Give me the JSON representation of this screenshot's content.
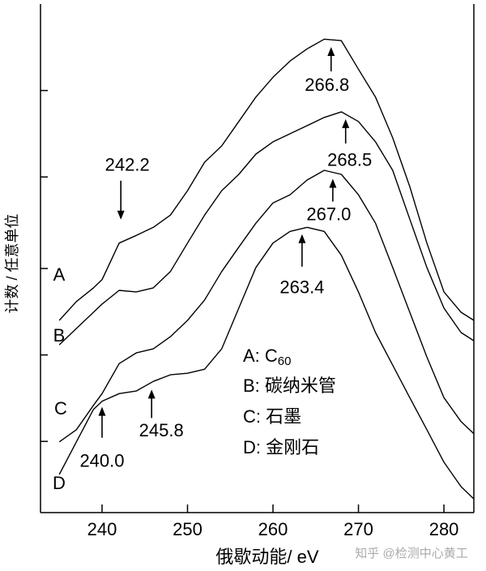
{
  "chart_data": {
    "type": "line",
    "x_label": "俄歇动能/ eV",
    "y_label": "计数 / 任意单位",
    "watermark": "知乎 @检测中心黄工",
    "xlim": [
      232.8,
      283.5
    ],
    "xticks": [
      240,
      250,
      260,
      270,
      280
    ],
    "ylim": [
      0,
      100
    ],
    "yticks": [
      14,
      31,
      48,
      66,
      83
    ],
    "x": [
      235,
      237,
      239,
      240,
      242,
      244,
      246,
      248,
      250,
      252,
      254,
      256,
      258,
      260,
      262,
      264,
      266,
      268,
      270,
      272,
      274,
      276,
      278,
      280,
      282,
      283.5
    ],
    "series": [
      {
        "name": "A",
        "legend": "A: C60",
        "color": "#000000",
        "values": [
          37.8,
          41.5,
          44.2,
          45.8,
          53.0,
          54.5,
          56.1,
          58.5,
          63.3,
          68.9,
          72.1,
          76.9,
          81.7,
          85.6,
          88.8,
          91.2,
          93.1,
          92.8,
          87.2,
          81.7,
          73.7,
          64.1,
          53.0,
          43.4,
          39.4,
          37.8
        ],
        "peaks": [
          242.2,
          266.8
        ]
      },
      {
        "name": "B",
        "legend": "B:  碳纳米管",
        "color": "#000000",
        "values": [
          33.0,
          36.2,
          39.4,
          41.0,
          43.7,
          43.4,
          44.2,
          47.4,
          53.0,
          58.5,
          63.3,
          66.5,
          70.5,
          72.9,
          74.5,
          76.1,
          77.7,
          78.8,
          76.9,
          72.9,
          67.3,
          57.7,
          48.2,
          40.2,
          35.4,
          33.8
        ],
        "peaks": [
          268.5
        ]
      },
      {
        "name": "C",
        "legend": "C:  石墨",
        "color": "#000000",
        "values": [
          13.9,
          16.3,
          21.1,
          23.4,
          29.3,
          31.4,
          32.2,
          34.6,
          37.8,
          41.8,
          47.4,
          52.2,
          56.9,
          60.9,
          62.5,
          65.4,
          67.3,
          66.5,
          62.5,
          56.9,
          48.2,
          39.4,
          30.6,
          22.6,
          17.9,
          15.5
        ],
        "peaks": [
          {
            "value": 267,
            "label": "267.0"
          }
        ]
      },
      {
        "name": "D",
        "legend": "D:  金刚石",
        "color": "#000000",
        "values": [
          7.5,
          13.9,
          20.3,
          21.9,
          23.4,
          23.9,
          25.8,
          27.1,
          27.4,
          28.2,
          32.2,
          40.2,
          48.2,
          53.0,
          55.3,
          56.1,
          55.3,
          50.6,
          43.4,
          35.4,
          29.0,
          22.6,
          16.3,
          9.9,
          5.1,
          2.7
        ],
        "peaks": [
          263.4,
          {
            "value": 240,
            "label": "240.0"
          },
          245.8
        ]
      }
    ]
  }
}
